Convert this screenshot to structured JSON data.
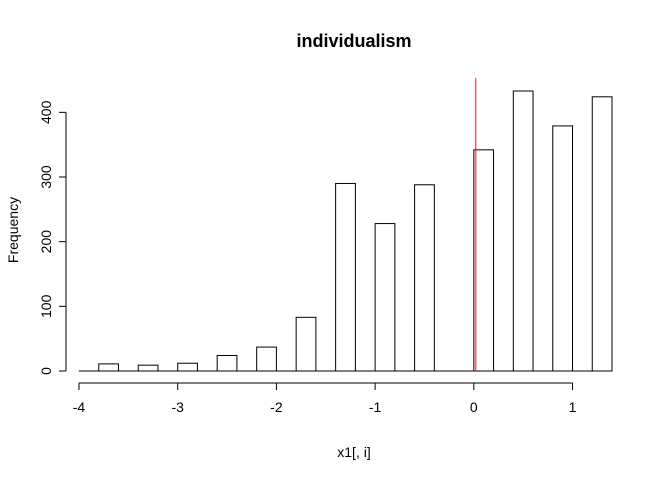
{
  "chart_data": {
    "type": "bar",
    "title": "individualism",
    "xlabel": "x1[, i]",
    "ylabel": "Frequency",
    "xlim": [
      -4,
      1.4
    ],
    "ylim": [
      0,
      450
    ],
    "xticks": [
      -4,
      -3,
      -2,
      -1,
      0,
      1
    ],
    "yticks": [
      0,
      100,
      200,
      300,
      400
    ],
    "bins": [
      {
        "x0": -3.8,
        "x1": -3.6,
        "count": 11
      },
      {
        "x0": -3.4,
        "x1": -3.2,
        "count": 9
      },
      {
        "x0": -3.0,
        "x1": -2.8,
        "count": 12
      },
      {
        "x0": -2.6,
        "x1": -2.4,
        "count": 24
      },
      {
        "x0": -2.2,
        "x1": -2.0,
        "count": 37
      },
      {
        "x0": -1.8,
        "x1": -1.6,
        "count": 83
      },
      {
        "x0": -1.4,
        "x1": -1.2,
        "count": 290
      },
      {
        "x0": -1.0,
        "x1": -0.8,
        "count": 228
      },
      {
        "x0": -0.6,
        "x1": -0.4,
        "count": 288
      },
      {
        "x0": -0.2,
        "x1": 0.0,
        "count": 0
      },
      {
        "x0": 0.0,
        "x1": 0.2,
        "count": 342
      },
      {
        "x0": 0.4,
        "x1": 0.6,
        "count": 433
      },
      {
        "x0": 0.8,
        "x1": 1.0,
        "count": 379
      },
      {
        "x0": 1.2,
        "x1": 1.4,
        "count": 424
      }
    ],
    "vline": {
      "x": 0.02,
      "color": "#e41a1c"
    },
    "grid": false
  }
}
